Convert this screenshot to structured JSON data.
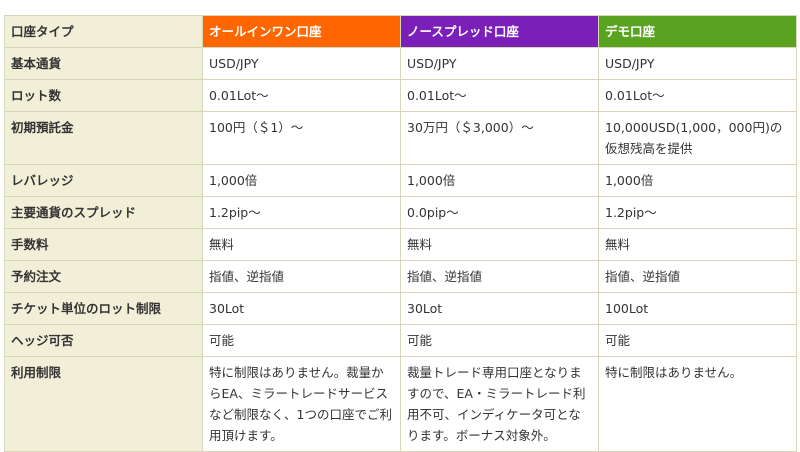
{
  "table": {
    "header": {
      "corner": "口座タイプ",
      "plans": [
        "オールインワン口座",
        "ノースプレッド口座",
        "デモ口座"
      ],
      "plan_colors": [
        "#ff6600",
        "#7a1fb8",
        "#5aa321"
      ]
    },
    "rows": [
      {
        "label": "基本通貨",
        "cells": [
          "USD/JPY",
          "USD/JPY",
          "USD/JPY"
        ]
      },
      {
        "label": "ロット数",
        "cells": [
          "0.01Lot～",
          "0.01Lot～",
          "0.01Lot～"
        ]
      },
      {
        "label": "初期預託金",
        "cells": [
          "100円（＄1）～",
          "30万円（＄3,000）～",
          "10,000USD(1,000，000円)の仮想残高を提供"
        ]
      },
      {
        "label": "レバレッジ",
        "cells": [
          "1,000倍",
          "1,000倍",
          "1,000倍"
        ]
      },
      {
        "label": "主要通貨のスプレッド",
        "cells": [
          "1.2pip～",
          "0.0pip～",
          "1.2pip～"
        ]
      },
      {
        "label": "手数料",
        "cells": [
          "無料",
          "無料",
          "無料"
        ]
      },
      {
        "label": "予約注文",
        "cells": [
          "指値、逆指値",
          "指値、逆指値",
          "指値、逆指値"
        ]
      },
      {
        "label": "チケット単位のロット制限",
        "cells": [
          "30Lot",
          "30Lot",
          "100Lot"
        ]
      },
      {
        "label": "ヘッジ可否",
        "cells": [
          "可能",
          "可能",
          "可能"
        ]
      },
      {
        "label": "利用制限",
        "cells": [
          "特に制限はありません。裁量からEA、ミラートレードサービスなど制限なく、1つの口座でご利用頂けます。",
          "裁量トレード専用口座となりますので、EA・ミラートレード利用不可、インディケータ可となります。ボーナス対象外。",
          "特に制限はありません。"
        ]
      }
    ]
  }
}
